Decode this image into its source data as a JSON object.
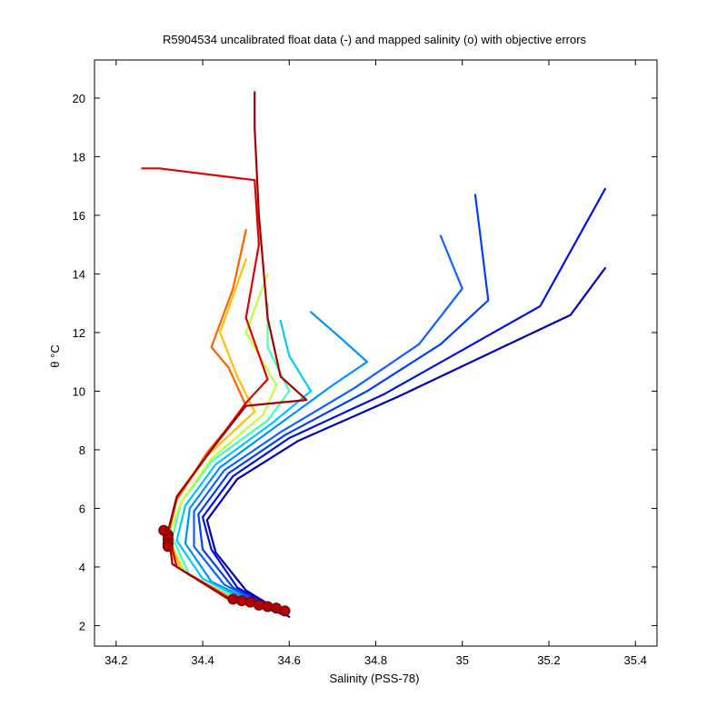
{
  "chart_data": {
    "type": "line",
    "title": "R5904534 uncalibrated float data (-) and mapped salinity (o) with objective errors",
    "xlabel": "Salinity (PSS-78)",
    "ylabel": "θ °C",
    "xlim": [
      34.15,
      35.45
    ],
    "ylim": [
      1.3,
      21.3
    ],
    "xticks": [
      34.2,
      34.4,
      34.6,
      34.8,
      35,
      35.2,
      35.4
    ],
    "yticks": [
      2,
      4,
      6,
      8,
      10,
      12,
      14,
      16,
      18,
      20
    ],
    "xtick_labels": [
      "34.2",
      "34.4",
      "34.6",
      "34.8",
      "35",
      "35.2",
      "35.4"
    ],
    "ytick_labels": [
      "2",
      "4",
      "6",
      "8",
      "10",
      "12",
      "14",
      "16",
      "18",
      "20"
    ],
    "grid": false,
    "colormap": "jet (blue = early profiles, red = late profiles)",
    "series": [
      {
        "color": "#0000b0",
        "points": [
          [
            34.6,
            2.3
          ],
          [
            34.5,
            3.2
          ],
          [
            34.43,
            4.5
          ],
          [
            34.41,
            5.6
          ],
          [
            34.48,
            7.0
          ],
          [
            34.62,
            8.3
          ],
          [
            34.85,
            9.8
          ],
          [
            35.05,
            11.2
          ],
          [
            35.25,
            12.6
          ],
          [
            35.33,
            14.2
          ]
        ]
      },
      {
        "color": "#0010d8",
        "points": [
          [
            34.59,
            2.35
          ],
          [
            34.48,
            3.3
          ],
          [
            34.42,
            4.6
          ],
          [
            34.4,
            5.7
          ],
          [
            34.47,
            7.1
          ],
          [
            34.6,
            8.4
          ],
          [
            34.82,
            9.9
          ],
          [
            35.0,
            11.4
          ],
          [
            35.18,
            12.9
          ],
          [
            35.33,
            16.9
          ]
        ]
      },
      {
        "color": "#0040f0",
        "points": [
          [
            34.58,
            2.4
          ],
          [
            34.47,
            3.3
          ],
          [
            34.4,
            4.6
          ],
          [
            34.39,
            5.8
          ],
          [
            34.46,
            7.2
          ],
          [
            34.59,
            8.5
          ],
          [
            34.78,
            10.0
          ],
          [
            34.95,
            11.6
          ],
          [
            35.06,
            13.1
          ],
          [
            35.03,
            16.7
          ]
        ]
      },
      {
        "color": "#1060ff",
        "points": [
          [
            34.57,
            2.45
          ],
          [
            34.45,
            3.4
          ],
          [
            34.38,
            4.7
          ],
          [
            34.38,
            5.9
          ],
          [
            34.45,
            7.3
          ],
          [
            34.58,
            8.6
          ],
          [
            34.75,
            10.1
          ],
          [
            34.9,
            11.6
          ],
          [
            35.0,
            13.5
          ],
          [
            34.95,
            15.3
          ]
        ]
      },
      {
        "color": "#0090ff",
        "points": [
          [
            34.56,
            2.5
          ],
          [
            34.42,
            3.5
          ],
          [
            34.36,
            4.8
          ],
          [
            34.37,
            6.0
          ],
          [
            34.44,
            7.4
          ],
          [
            34.57,
            8.8
          ],
          [
            34.7,
            10.2
          ],
          [
            34.78,
            11.0
          ],
          [
            34.72,
            11.8
          ],
          [
            34.65,
            12.7
          ]
        ]
      },
      {
        "color": "#00c8ff",
        "points": [
          [
            34.55,
            2.5
          ],
          [
            34.4,
            3.6
          ],
          [
            34.34,
            4.9
          ],
          [
            34.36,
            6.1
          ],
          [
            34.43,
            7.5
          ],
          [
            34.56,
            8.9
          ],
          [
            34.65,
            10.0
          ],
          [
            34.6,
            11.2
          ],
          [
            34.58,
            12.4
          ]
        ]
      },
      {
        "color": "#40ffc0",
        "points": [
          [
            34.53,
            2.6
          ],
          [
            34.37,
            3.7
          ],
          [
            34.33,
            5.0
          ],
          [
            34.35,
            6.2
          ],
          [
            34.42,
            7.6
          ],
          [
            34.55,
            9.0
          ],
          [
            34.6,
            10.0
          ],
          [
            34.55,
            11.5
          ],
          [
            34.55,
            13.0
          ]
        ]
      },
      {
        "color": "#c0ff40",
        "points": [
          [
            34.5,
            2.7
          ],
          [
            34.36,
            3.8
          ],
          [
            34.32,
            5.0
          ],
          [
            34.35,
            6.2
          ],
          [
            34.42,
            7.7
          ],
          [
            34.54,
            9.2
          ],
          [
            34.57,
            10.2
          ],
          [
            34.5,
            12.0
          ],
          [
            34.55,
            14.0
          ]
        ]
      },
      {
        "color": "#ffc000",
        "points": [
          [
            34.49,
            2.75
          ],
          [
            34.35,
            3.9
          ],
          [
            34.32,
            5.1
          ],
          [
            34.34,
            6.3
          ],
          [
            34.41,
            7.8
          ],
          [
            34.52,
            9.3
          ],
          [
            34.48,
            10.5
          ],
          [
            34.44,
            12.0
          ],
          [
            34.5,
            14.5
          ]
        ]
      },
      {
        "color": "#ff6000",
        "points": [
          [
            34.48,
            2.8
          ],
          [
            34.34,
            4.0
          ],
          [
            34.32,
            5.1
          ],
          [
            34.34,
            6.3
          ],
          [
            34.41,
            7.9
          ],
          [
            34.5,
            9.5
          ],
          [
            34.46,
            10.8
          ],
          [
            34.42,
            11.5
          ],
          [
            34.47,
            13.5
          ],
          [
            34.5,
            15.5
          ]
        ]
      },
      {
        "color": "#e00000",
        "points": [
          [
            34.47,
            2.85
          ],
          [
            34.34,
            4.0
          ],
          [
            34.32,
            5.2
          ],
          [
            34.34,
            6.4
          ],
          [
            34.42,
            8.0
          ],
          [
            34.5,
            9.6
          ],
          [
            34.55,
            10.4
          ],
          [
            34.5,
            12.5
          ],
          [
            34.53,
            15.0
          ],
          [
            34.52,
            17.2
          ],
          [
            34.3,
            17.6
          ],
          [
            34.26,
            17.6
          ]
        ]
      },
      {
        "color": "#a00000",
        "points": [
          [
            34.46,
            2.9
          ],
          [
            34.33,
            4.1
          ],
          [
            34.32,
            5.2
          ],
          [
            34.34,
            6.4
          ],
          [
            34.42,
            8.0
          ],
          [
            34.5,
            9.5
          ],
          [
            34.64,
            9.7
          ],
          [
            34.58,
            10.5
          ],
          [
            34.55,
            12.5
          ],
          [
            34.53,
            16.0
          ],
          [
            34.52,
            19.0
          ],
          [
            34.52,
            20.2
          ]
        ]
      }
    ],
    "mapped_salinity": {
      "color": "#b00000",
      "points": [
        [
          34.31,
          5.25
        ],
        [
          34.32,
          5.1
        ],
        [
          34.32,
          4.95
        ],
        [
          34.32,
          4.8
        ],
        [
          34.32,
          4.7
        ],
        [
          34.47,
          2.9
        ],
        [
          34.49,
          2.85
        ],
        [
          34.51,
          2.8
        ],
        [
          34.53,
          2.7
        ],
        [
          34.55,
          2.65
        ],
        [
          34.57,
          2.6
        ],
        [
          34.59,
          2.5
        ]
      ]
    }
  }
}
